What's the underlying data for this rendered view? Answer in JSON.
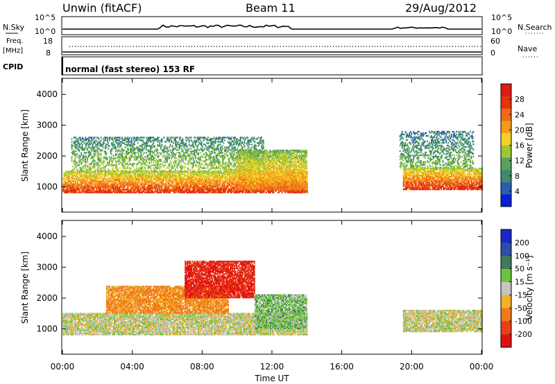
{
  "header": {
    "site": "Unwin (fitACF)",
    "beam": "Beam 11",
    "date": "29/Aug/2012"
  },
  "status_panels": {
    "nsky_label": "N.Sky",
    "nsky_ticks": [
      "10^5",
      "10^0"
    ],
    "nsearch_label": "N.Search",
    "nsearch_ticks": [
      "10^5",
      "10^0"
    ],
    "freq_label": "Freq.",
    "freq_unit": "[MHz]",
    "freq_ticks": [
      "18",
      "8"
    ],
    "nave_label": "Nave",
    "nave_ticks": [
      "60",
      "0"
    ],
    "cpid_label": "CPID",
    "cpid_text": "normal (fast stereo) 153 RF"
  },
  "chart_data": [
    {
      "type": "heatmap",
      "name": "power",
      "ylabel": "Slant Range [km]",
      "xlabel": "",
      "xlim": [
        "00:00",
        "24:00"
      ],
      "ylim": [
        200,
        4500
      ],
      "yticks": [
        1000,
        2000,
        3000,
        4000
      ],
      "colorbar": {
        "label": "Power [dB]",
        "ticks": [
          28,
          24,
          20,
          16,
          12,
          8,
          4
        ],
        "range": [
          0,
          32
        ],
        "colors": [
          "#0b1fd8",
          "#2a5fb0",
          "#3e8a6a",
          "#5aa060",
          "#9bc832",
          "#f2d12a",
          "#f59a1c",
          "#ee6a16",
          "#e4320f",
          "#de1b10"
        ]
      },
      "echo_regions": [
        {
          "region": "main band lower edge",
          "t_start": 0.0,
          "t_end": 14.0,
          "range_start": 800,
          "range_end": 1500,
          "power_db": 26
        },
        {
          "region": "morning scatter",
          "t_start": 0.5,
          "t_end": 11.5,
          "range_start": 1500,
          "range_end": 2600,
          "power_db": 14
        },
        {
          "region": "afternoon band",
          "t_start": 10.0,
          "t_end": 14.0,
          "range_start": 900,
          "range_end": 2200,
          "power_db": 22
        },
        {
          "region": "dusk band",
          "t_start": 19.5,
          "t_end": 24.0,
          "range_start": 900,
          "range_end": 1600,
          "power_db": 27
        },
        {
          "region": "dusk high-range scatter",
          "t_start": 19.3,
          "t_end": 23.5,
          "range_start": 1600,
          "range_end": 2800,
          "power_db": 12
        }
      ]
    },
    {
      "type": "heatmap",
      "name": "velocity",
      "ylabel": "Slant Range [km]",
      "xlabel": "Time UT",
      "xticks": [
        "00:00",
        "04:00",
        "08:00",
        "12:00",
        "16:00",
        "20:00",
        "00:00"
      ],
      "ylim": [
        200,
        4500
      ],
      "yticks": [
        1000,
        2000,
        3000,
        4000
      ],
      "colorbar": {
        "label": "Velocity [m s⁻¹]",
        "ticks": [
          "200",
          "100",
          "50",
          "15",
          "-15",
          "-50",
          "-100",
          "-200"
        ],
        "colors": [
          "#1a28c8",
          "#2c4fa2",
          "#3f7a5c",
          "#6cc43c",
          "#c6c6c0",
          "#f2b12a",
          "#f07818",
          "#e8401a",
          "#e01010"
        ]
      },
      "echo_regions": [
        {
          "region": "ground scatter",
          "t_start": 0.0,
          "t_end": 14.0,
          "range_start": 800,
          "range_end": 1500,
          "velocity": 0
        },
        {
          "region": "westward flow",
          "t_start": 2.5,
          "t_end": 9.5,
          "range_start": 1500,
          "range_end": 2400,
          "velocity": -60
        },
        {
          "region": "strong flow patch",
          "t_start": 7.0,
          "t_end": 11.0,
          "range_start": 2000,
          "range_end": 3200,
          "velocity": -200
        },
        {
          "region": "eastward flow",
          "t_start": 11.0,
          "t_end": 14.0,
          "range_start": 1000,
          "range_end": 2100,
          "velocity": 30
        },
        {
          "region": "dusk ground scatter",
          "t_start": 19.5,
          "t_end": 24.0,
          "range_start": 900,
          "range_end": 1600,
          "velocity": 0
        }
      ]
    }
  ]
}
